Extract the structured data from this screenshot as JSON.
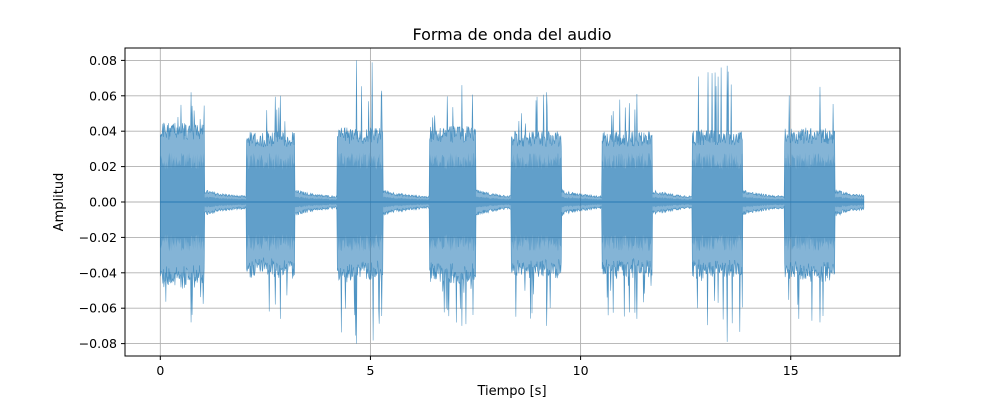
{
  "chart_data": {
    "type": "area",
    "title": "Forma de onda del audio",
    "xlabel": "Tiempo [s]",
    "ylabel": "Amplitud",
    "xlim": [
      -0.84,
      17.6
    ],
    "ylim": [
      -0.087,
      0.087
    ],
    "xticks": [
      0,
      5,
      10,
      15
    ],
    "xtick_labels": [
      "0",
      "5",
      "10",
      "15"
    ],
    "yticks": [
      -0.08,
      -0.06,
      -0.04,
      -0.02,
      0.0,
      0.02,
      0.04,
      0.06,
      0.08
    ],
    "ytick_labels": [
      "−0.08",
      "−0.06",
      "−0.04",
      "−0.02",
      "0.00",
      "0.02",
      "0.04",
      "0.06",
      "0.08"
    ],
    "grid": true,
    "colors": {
      "waveform": "#1f77b4",
      "grid": "#b0b0b0"
    },
    "series": [
      {
        "duration": 16.75,
        "bursts": [
          {
            "start": 0.0,
            "end": 1.05,
            "peak": 0.062,
            "min": -0.068,
            "loud": 0.045,
            "core": 0.011
          },
          {
            "start": 2.05,
            "end": 3.2,
            "peak": 0.06,
            "min": -0.066,
            "loud": 0.04,
            "core": 0.011
          },
          {
            "start": 4.2,
            "end": 5.3,
            "peak": 0.08,
            "min": -0.08,
            "loud": 0.042,
            "core": 0.011
          },
          {
            "start": 6.4,
            "end": 7.5,
            "peak": 0.066,
            "min": -0.07,
            "loud": 0.043,
            "core": 0.011
          },
          {
            "start": 8.35,
            "end": 9.55,
            "peak": 0.062,
            "min": -0.07,
            "loud": 0.04,
            "core": 0.011
          },
          {
            "start": 10.5,
            "end": 11.7,
            "peak": 0.061,
            "min": -0.066,
            "loud": 0.04,
            "core": 0.011
          },
          {
            "start": 12.65,
            "end": 13.85,
            "peak": 0.077,
            "min": -0.079,
            "loud": 0.041,
            "core": 0.011
          },
          {
            "start": 14.85,
            "end": 16.05,
            "peak": 0.065,
            "min": -0.068,
            "loud": 0.042,
            "core": 0.011
          }
        ],
        "tail_amplitude": 0.006
      }
    ]
  }
}
